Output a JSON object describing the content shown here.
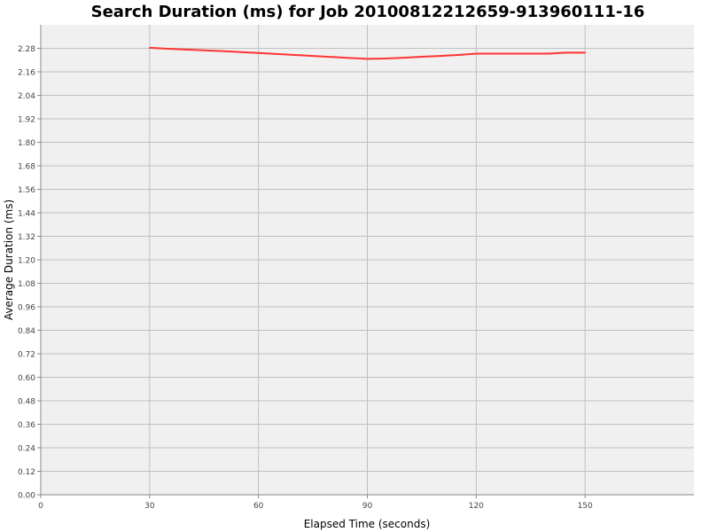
{
  "chart_data": {
    "type": "line",
    "title": "Search Duration (ms) for Job 20100812212659-913960111-16",
    "xlabel": "Elapsed Time (seconds)",
    "ylabel": "Average Duration (ms)",
    "xlim": [
      0,
      180
    ],
    "ylim": [
      0,
      2.4
    ],
    "xticks": [
      0,
      30,
      60,
      90,
      120,
      150
    ],
    "yticks": [
      "0.00",
      "0.12",
      "0.24",
      "0.36",
      "0.48",
      "0.60",
      "0.72",
      "0.84",
      "0.96",
      "1.08",
      "1.20",
      "1.32",
      "1.44",
      "1.56",
      "1.68",
      "1.80",
      "1.92",
      "2.04",
      "2.16",
      "2.28"
    ],
    "grid": true,
    "legend": "none",
    "colors": {
      "series": "#ff3333",
      "plot_background": "#f0f0f0",
      "grid": "#c0c0c0"
    },
    "series": [
      {
        "x": [
          30,
          35,
          40,
          45,
          50,
          55,
          60,
          65,
          70,
          75,
          80,
          85,
          90,
          95,
          100,
          105,
          110,
          115,
          120,
          125,
          130,
          135,
          140,
          145,
          150
        ],
        "y": [
          2.283,
          2.278,
          2.274,
          2.27,
          2.266,
          2.261,
          2.256,
          2.251,
          2.246,
          2.241,
          2.236,
          2.231,
          2.226,
          2.228,
          2.232,
          2.237,
          2.241,
          2.246,
          2.253,
          2.253,
          2.253,
          2.253,
          2.253,
          2.258,
          2.258
        ]
      }
    ]
  }
}
